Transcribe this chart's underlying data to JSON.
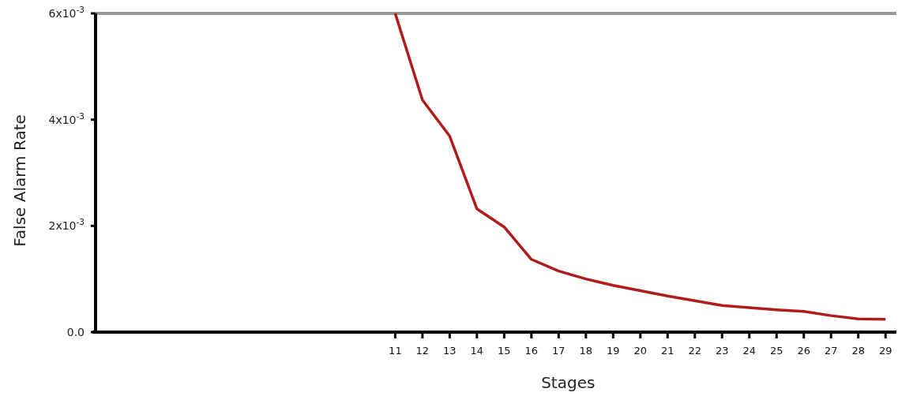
{
  "chart_data": {
    "type": "line",
    "xlabel": "Stages",
    "ylabel": "False Alarm Rate",
    "x": [
      11,
      12,
      13,
      14,
      15,
      16,
      17,
      18,
      19,
      20,
      21,
      22,
      23,
      24,
      25,
      26,
      27,
      28,
      29
    ],
    "series": [
      {
        "color": "#b01c1c",
        "values": [
          0.006,
          0.00437,
          0.00369,
          0.00232,
          0.00198,
          0.00137,
          0.00115,
          0.001,
          0.00088,
          0.00078,
          0.00068,
          0.00059,
          0.0005,
          0.00046,
          0.00042,
          0.00039,
          0.00031,
          0.00025,
          0.00024
        ]
      }
    ],
    "xlim": [
      0,
      29.4
    ],
    "xticks": [
      11,
      12,
      13,
      14,
      15,
      16,
      17,
      18,
      19,
      20,
      21,
      22,
      23,
      24,
      25,
      26,
      27,
      28,
      29
    ],
    "ylim": [
      0,
      0.006
    ],
    "yticks": [
      {
        "value": 0,
        "label": "0.0"
      },
      {
        "value": 0.002,
        "label": "2x10$^{-3}$"
      },
      {
        "value": 0.004,
        "label": "4x10$^{-3}$"
      },
      {
        "value": 0.006,
        "label": "6x10$^{-3}$"
      }
    ],
    "ref_lines": [
      {
        "axis": "y",
        "value": 0.006,
        "color": "#999999"
      }
    ],
    "grid": false,
    "marker": "none",
    "line_style": "solid"
  }
}
